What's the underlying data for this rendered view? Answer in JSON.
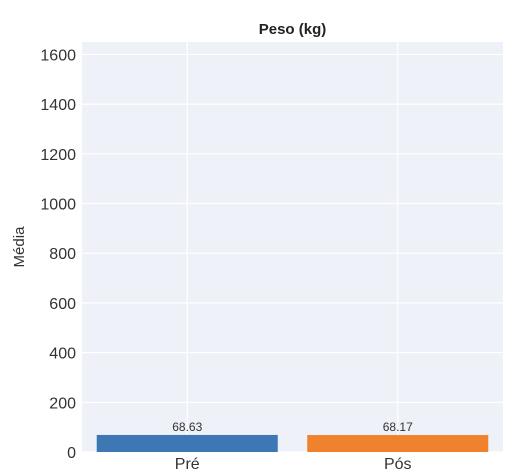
{
  "chart_data": {
    "type": "bar",
    "title": "Peso (kg)",
    "xlabel": "",
    "ylabel": "Média",
    "categories": [
      "Pré",
      "Pós"
    ],
    "values": [
      68.63,
      68.17
    ],
    "value_labels": [
      "68.63",
      "68.17"
    ],
    "colors": [
      "#3d78b5",
      "#f0822d"
    ],
    "ylim": [
      0,
      1650
    ],
    "yticks": [
      0,
      200,
      400,
      600,
      800,
      1000,
      1200,
      1400,
      1600
    ],
    "grid": true,
    "plot_background": "#eef1f7"
  }
}
